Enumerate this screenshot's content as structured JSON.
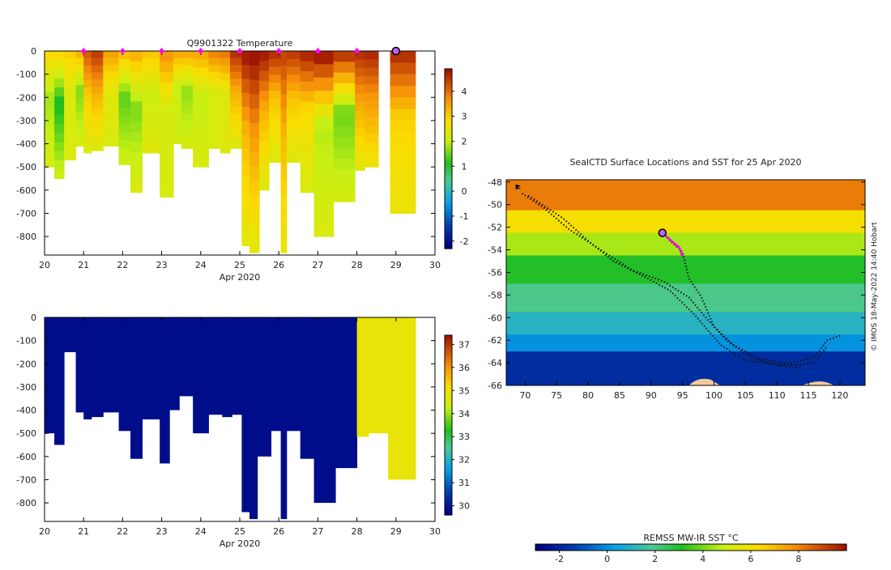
{
  "chart_data": [
    {
      "type": "heatmap",
      "title": "Q9901322  Temperature",
      "xlabel": "Apr 2020",
      "xlim": [
        20,
        30
      ],
      "x_ticks": [
        20,
        21,
        22,
        23,
        24,
        25,
        26,
        27,
        28,
        29,
        30
      ],
      "ylim": [
        -880,
        0
      ],
      "y_ticks": [
        0,
        -100,
        -200,
        -300,
        -400,
        -500,
        -600,
        -700,
        -800
      ],
      "colorbar": {
        "range": [
          -2.3,
          4.9
        ],
        "ticks": [
          4,
          3,
          2,
          1,
          0,
          -1,
          -2
        ]
      },
      "markers": {
        "positions": [
          21,
          22,
          23,
          24,
          25,
          26,
          27,
          28
        ],
        "color": "#ff00ff",
        "current": 29
      },
      "profiles": [
        {
          "start": 20.0,
          "end": 20.25,
          "depth": 500,
          "surface": 2.9,
          "mid": 1.8,
          "deep": 2.2
        },
        {
          "start": 20.25,
          "end": 20.5,
          "depth": 550,
          "surface": 2.9,
          "mid": 1.0,
          "deep": 2.1
        },
        {
          "start": 20.5,
          "end": 20.8,
          "depth": 470,
          "surface": 3.0,
          "mid": 2.3,
          "deep": 2.3
        },
        {
          "start": 20.8,
          "end": 21.0,
          "depth": 410,
          "surface": 3.3,
          "mid": 1.6,
          "deep": 2.2
        },
        {
          "start": 21.0,
          "end": 21.2,
          "depth": 440,
          "surface": 4.2,
          "mid": 3.1,
          "deep": 2.3
        },
        {
          "start": 21.2,
          "end": 21.5,
          "depth": 430,
          "surface": 4.5,
          "mid": 3.4,
          "deep": 2.4
        },
        {
          "start": 21.5,
          "end": 21.9,
          "depth": 410,
          "surface": 3.5,
          "mid": 2.5,
          "deep": 2.3
        },
        {
          "start": 21.9,
          "end": 22.2,
          "depth": 490,
          "surface": 3.2,
          "mid": 1.4,
          "deep": 2.1
        },
        {
          "start": 22.2,
          "end": 22.5,
          "depth": 610,
          "surface": 3.3,
          "mid": 1.6,
          "deep": 2.3
        },
        {
          "start": 22.5,
          "end": 22.95,
          "depth": 440,
          "surface": 3.1,
          "mid": 2.1,
          "deep": 2.4
        },
        {
          "start": 22.95,
          "end": 23.3,
          "depth": 630,
          "surface": 3.6,
          "mid": 2.2,
          "deep": 2.3
        },
        {
          "start": 23.3,
          "end": 23.5,
          "depth": 400,
          "surface": 3.4,
          "mid": 2.0,
          "deep": 2.2
        },
        {
          "start": 23.5,
          "end": 23.8,
          "depth": 420,
          "surface": 3.4,
          "mid": 1.7,
          "deep": 2.2
        },
        {
          "start": 23.8,
          "end": 24.2,
          "depth": 500,
          "surface": 3.4,
          "mid": 2.0,
          "deep": 2.3
        },
        {
          "start": 24.2,
          "end": 24.5,
          "depth": 420,
          "surface": 3.8,
          "mid": 2.3,
          "deep": 2.3
        },
        {
          "start": 24.5,
          "end": 24.75,
          "depth": 440,
          "surface": 3.9,
          "mid": 2.4,
          "deep": 2.4
        },
        {
          "start": 24.75,
          "end": 25.05,
          "depth": 420,
          "surface": 4.6,
          "mid": 3.4,
          "deep": 2.4
        },
        {
          "start": 25.05,
          "end": 25.25,
          "depth": 840,
          "surface": 4.8,
          "mid": 3.3,
          "deep": 2.5
        },
        {
          "start": 25.25,
          "end": 25.5,
          "depth": 870,
          "surface": 4.9,
          "mid": 3.6,
          "deep": 2.5
        },
        {
          "start": 25.5,
          "end": 25.75,
          "depth": 600,
          "surface": 4.8,
          "mid": 3.4,
          "deep": 2.4
        },
        {
          "start": 25.75,
          "end": 26.05,
          "depth": 480,
          "surface": 4.6,
          "mid": 3.2,
          "deep": 2.4
        },
        {
          "start": 26.05,
          "end": 26.2,
          "depth": 870,
          "surface": 4.4,
          "mid": 3.3,
          "deep": 2.6
        },
        {
          "start": 26.2,
          "end": 26.55,
          "depth": 480,
          "surface": 4.5,
          "mid": 3.2,
          "deep": 2.4
        },
        {
          "start": 26.55,
          "end": 26.9,
          "depth": 610,
          "surface": 4.7,
          "mid": 2.9,
          "deep": 2.3
        },
        {
          "start": 26.9,
          "end": 27.4,
          "depth": 800,
          "surface": 4.8,
          "mid": 1.9,
          "deep": 2.3
        },
        {
          "start": 27.4,
          "end": 27.95,
          "depth": 650,
          "surface": 4.5,
          "mid": 1.5,
          "deep": 2.2
        },
        {
          "start": 27.95,
          "end": 28.2,
          "depth": 515,
          "surface": 4.6,
          "mid": 3.5,
          "deep": 2.5
        },
        {
          "start": 28.2,
          "end": 28.55,
          "depth": 500,
          "surface": 4.7,
          "mid": 3.6,
          "deep": 2.7
        },
        {
          "start": 28.55,
          "end": 28.85,
          "depth": 0,
          "surface": 4.0,
          "mid": 3.0,
          "deep": 2.5
        },
        {
          "start": 28.85,
          "end": 29.5,
          "depth": 700,
          "surface": 4.6,
          "mid": 3.0,
          "deep": 2.6
        }
      ]
    },
    {
      "type": "heatmap",
      "title": "",
      "xlabel": "Apr 2020",
      "xlim": [
        20,
        30
      ],
      "x_ticks": [
        20,
        21,
        22,
        23,
        24,
        25,
        26,
        27,
        28,
        29,
        30
      ],
      "ylim": [
        -880,
        0
      ],
      "y_ticks": [
        0,
        -100,
        -200,
        -300,
        -400,
        -500,
        -600,
        -700,
        -800
      ],
      "colorbar": {
        "range": [
          29.6,
          37.4
        ],
        "ticks": [
          37,
          36,
          35,
          34,
          33,
          32,
          31,
          30
        ]
      },
      "profiles": [
        {
          "start": 20.0,
          "end": 20.25,
          "depth": 500,
          "value": 29.8
        },
        {
          "start": 20.25,
          "end": 20.5,
          "depth": 550,
          "value": 29.8
        },
        {
          "start": 20.5,
          "end": 20.8,
          "depth": 150,
          "value": 29.8
        },
        {
          "start": 20.8,
          "end": 21.0,
          "depth": 410,
          "value": 29.8
        },
        {
          "start": 21.0,
          "end": 21.2,
          "depth": 440,
          "value": 29.8
        },
        {
          "start": 21.2,
          "end": 21.5,
          "depth": 430,
          "value": 29.8
        },
        {
          "start": 21.5,
          "end": 21.9,
          "depth": 410,
          "value": 29.8
        },
        {
          "start": 21.9,
          "end": 22.2,
          "depth": 490,
          "value": 29.8
        },
        {
          "start": 22.2,
          "end": 22.5,
          "depth": 610,
          "value": 29.8
        },
        {
          "start": 22.5,
          "end": 22.95,
          "depth": 440,
          "value": 29.8
        },
        {
          "start": 22.95,
          "end": 23.2,
          "depth": 630,
          "value": 29.8
        },
        {
          "start": 23.2,
          "end": 23.45,
          "depth": 400,
          "value": 29.8
        },
        {
          "start": 23.45,
          "end": 23.8,
          "depth": 340,
          "value": 29.8
        },
        {
          "start": 23.8,
          "end": 24.2,
          "depth": 500,
          "value": 29.8
        },
        {
          "start": 24.2,
          "end": 24.55,
          "depth": 420,
          "value": 29.8
        },
        {
          "start": 24.55,
          "end": 24.8,
          "depth": 430,
          "value": 29.8
        },
        {
          "start": 24.8,
          "end": 25.05,
          "depth": 420,
          "value": 29.8
        },
        {
          "start": 25.05,
          "end": 25.25,
          "depth": 840,
          "value": 29.8
        },
        {
          "start": 25.25,
          "end": 25.45,
          "depth": 870,
          "value": 29.8
        },
        {
          "start": 25.45,
          "end": 25.8,
          "depth": 600,
          "value": 29.8
        },
        {
          "start": 25.8,
          "end": 26.05,
          "depth": 490,
          "value": 29.8
        },
        {
          "start": 26.05,
          "end": 26.2,
          "depth": 870,
          "value": 29.8
        },
        {
          "start": 26.2,
          "end": 26.55,
          "depth": 490,
          "value": 29.8
        },
        {
          "start": 26.55,
          "end": 26.9,
          "depth": 610,
          "value": 29.8
        },
        {
          "start": 26.9,
          "end": 27.45,
          "depth": 800,
          "value": 29.8
        },
        {
          "start": 27.45,
          "end": 28.0,
          "depth": 650,
          "value": 29.8
        },
        {
          "start": 28.0,
          "end": 28.3,
          "depth": 515,
          "value": 34.9
        },
        {
          "start": 28.3,
          "end": 28.8,
          "depth": 500,
          "value": 34.9
        },
        {
          "start": 28.8,
          "end": 29.5,
          "depth": 700,
          "value": 34.9
        }
      ]
    },
    {
      "type": "map",
      "title": "SealCTD Surface Locations and SST for 25 Apr 2020",
      "xlabel": "",
      "xlim": [
        67,
        124
      ],
      "x_ticks": [
        70,
        75,
        80,
        85,
        90,
        95,
        100,
        105,
        110,
        115,
        120
      ],
      "ylim": [
        -66,
        -47.8
      ],
      "y_ticks": [
        -48,
        -50,
        -52,
        -54,
        -56,
        -58,
        -60,
        -62,
        -64,
        -66
      ],
      "credit": "© IMOS 18-May-2022 14:40 Hobart",
      "colorbar": {
        "label": "REMSS MW-IR SST °C",
        "range": [
          -3,
          10
        ],
        "ticks": [
          -2,
          0,
          2,
          4,
          6,
          8
        ]
      },
      "sst_bands": [
        {
          "lat_top": -47.8,
          "lat_bottom": -50.5,
          "temp": 8.2
        },
        {
          "lat_top": -50.5,
          "lat_bottom": -52.5,
          "temp": 6.2
        },
        {
          "lat_top": -52.5,
          "lat_bottom": -54.5,
          "temp": 4.5
        },
        {
          "lat_top": -54.5,
          "lat_bottom": -57.0,
          "temp": 3.0
        },
        {
          "lat_top": -57.0,
          "lat_bottom": -59.5,
          "temp": 2.0
        },
        {
          "lat_top": -59.5,
          "lat_bottom": -61.5,
          "temp": 1.0
        },
        {
          "lat_top": -61.5,
          "lat_bottom": -63.0,
          "temp": 0.0
        },
        {
          "lat_top": -63.0,
          "lat_bottom": -66.0,
          "temp": -1.8
        }
      ],
      "track_1": [
        [
          69.5,
          -49.0
        ],
        [
          73,
          -50.3
        ],
        [
          77,
          -52.2
        ],
        [
          82,
          -54.0
        ],
        [
          87,
          -55.8
        ],
        [
          92,
          -56.8
        ],
        [
          96,
          -58.2
        ],
        [
          99,
          -60.2
        ],
        [
          102,
          -62.0
        ],
        [
          106,
          -63.6
        ],
        [
          110,
          -64.2
        ],
        [
          114,
          -64.5
        ]
      ],
      "track_2": [
        [
          70.5,
          -49.2
        ],
        [
          76,
          -51.2
        ],
        [
          80,
          -53.2
        ],
        [
          84,
          -55.0
        ],
        [
          89,
          -56.4
        ],
        [
          93,
          -57.6
        ],
        [
          97,
          -59.8
        ],
        [
          101,
          -62.4
        ],
        [
          105,
          -63.8
        ],
        [
          111,
          -64.2
        ],
        [
          116,
          -63.5
        ],
        [
          118,
          -62.0
        ],
        [
          120,
          -61.6
        ]
      ],
      "track_3": [
        [
          91.8,
          -52.5
        ],
        [
          93,
          -53.2
        ],
        [
          95,
          -54.2
        ],
        [
          96,
          -56.5
        ],
        [
          98,
          -58.2
        ],
        [
          100,
          -60.8
        ],
        [
          103,
          -62.4
        ],
        [
          107,
          -63.6
        ],
        [
          113,
          -64.2
        ],
        [
          116,
          -64.0
        ],
        [
          118,
          -62.5
        ]
      ],
      "highlight_track": [
        [
          91.8,
          -52.5
        ],
        [
          93,
          -53.1
        ],
        [
          94.5,
          -53.8
        ],
        [
          95,
          -54.6
        ]
      ],
      "current_location": [
        91.8,
        -52.5
      ]
    }
  ]
}
